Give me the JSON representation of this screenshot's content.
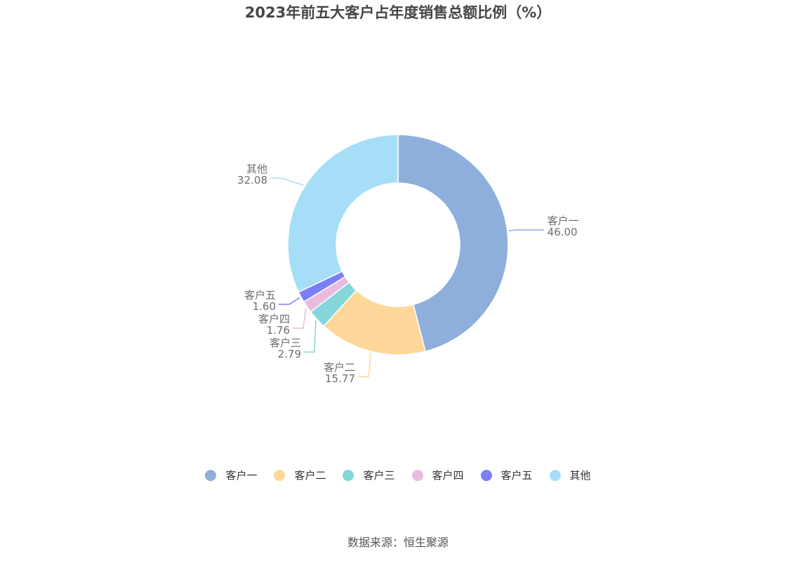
{
  "title": "2023年前五大客户占年度销售总额比例（%）",
  "source": "数据来源：恒生聚源",
  "chart_data": {
    "type": "pie",
    "variant": "donut",
    "title": "2023年前五大客户占年度销售总额比例（%）",
    "legend_position": "bottom",
    "slices": [
      {
        "label": "客户一",
        "value": 46.0,
        "value_text": "46.00",
        "color": "#8eafdc"
      },
      {
        "label": "客户二",
        "value": 15.77,
        "value_text": "15.77",
        "color": "#fdd89a"
      },
      {
        "label": "客户三",
        "value": 2.79,
        "value_text": "2.79",
        "color": "#84d6d8"
      },
      {
        "label": "客户四",
        "value": 1.76,
        "value_text": "1.76",
        "color": "#e9badf"
      },
      {
        "label": "客户五",
        "value": 1.6,
        "value_text": "1.60",
        "color": "#7a7ef7"
      },
      {
        "label": "其他",
        "value": 32.08,
        "value_text": "32.08",
        "color": "#a6def8"
      }
    ]
  }
}
